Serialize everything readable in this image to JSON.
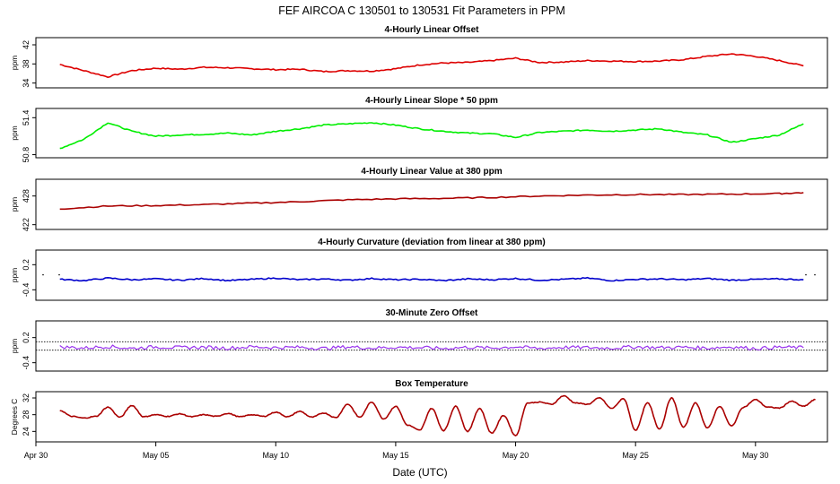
{
  "title": "FEF   AIRCOA C   130501 to 130531   Fit Parameters in PPM",
  "chart_data": {
    "type": "line",
    "xlabel": "Date (UTC)",
    "x_range": [
      "2013-04-30",
      "2013-06-02"
    ],
    "x_ticks": [
      {
        "date": "2013-04-30",
        "label": "Apr 30"
      },
      {
        "date": "2013-05-05",
        "label": "May 05"
      },
      {
        "date": "2013-05-10",
        "label": "May 10"
      },
      {
        "date": "2013-05-15",
        "label": "May 15"
      },
      {
        "date": "2013-05-20",
        "label": "May 20"
      },
      {
        "date": "2013-05-25",
        "label": "May 25"
      },
      {
        "date": "2013-05-30",
        "label": "May 30"
      }
    ],
    "panels": [
      {
        "title": "4-Hourly Linear Offset",
        "ylabel": "ppm",
        "ylim": [
          33,
          43.5
        ],
        "yticks": [
          34,
          38,
          42
        ],
        "color": "#dd0000",
        "hlines": [],
        "points": [
          [
            "2013-05-01",
            37.9
          ],
          [
            "2013-05-02",
            36.6
          ],
          [
            "2013-05-03",
            35.3
          ],
          [
            "2013-05-04",
            36.6
          ],
          [
            "2013-05-05",
            37.1
          ],
          [
            "2013-05-06",
            36.9
          ],
          [
            "2013-05-07",
            37.3
          ],
          [
            "2013-05-08",
            37.2
          ],
          [
            "2013-05-09",
            37.0
          ],
          [
            "2013-05-10",
            36.8
          ],
          [
            "2013-05-11",
            36.9
          ],
          [
            "2013-05-12",
            36.4
          ],
          [
            "2013-05-13",
            36.6
          ],
          [
            "2013-05-14",
            36.5
          ],
          [
            "2013-05-15",
            37.0
          ],
          [
            "2013-05-16",
            37.8
          ],
          [
            "2013-05-17",
            38.2
          ],
          [
            "2013-05-18",
            38.3
          ],
          [
            "2013-05-19",
            38.7
          ],
          [
            "2013-05-20",
            39.2
          ],
          [
            "2013-05-21",
            38.3
          ],
          [
            "2013-05-22",
            38.4
          ],
          [
            "2013-05-23",
            38.7
          ],
          [
            "2013-05-24",
            38.6
          ],
          [
            "2013-05-25",
            38.5
          ],
          [
            "2013-05-26",
            38.6
          ],
          [
            "2013-05-27",
            38.9
          ],
          [
            "2013-05-28",
            39.6
          ],
          [
            "2013-05-29",
            40.1
          ],
          [
            "2013-05-30",
            39.6
          ],
          [
            "2013-05-31",
            38.7
          ],
          [
            "2013-06-01",
            37.6
          ]
        ]
      },
      {
        "title": "4-Hourly Linear Slope * 50 ppm",
        "ylabel": "ppm",
        "ylim": [
          50.75,
          51.55
        ],
        "yticks": [
          50.8,
          51.4
        ],
        "color": "#00ee00",
        "hlines": [],
        "points": [
          [
            "2013-05-01",
            50.9
          ],
          [
            "2013-05-02",
            51.05
          ],
          [
            "2013-05-03",
            51.32
          ],
          [
            "2013-05-04",
            51.18
          ],
          [
            "2013-05-05",
            51.1
          ],
          [
            "2013-05-06",
            51.12
          ],
          [
            "2013-05-07",
            51.13
          ],
          [
            "2013-05-08",
            51.15
          ],
          [
            "2013-05-09",
            51.12
          ],
          [
            "2013-05-10",
            51.18
          ],
          [
            "2013-05-11",
            51.22
          ],
          [
            "2013-05-12",
            51.28
          ],
          [
            "2013-05-13",
            51.3
          ],
          [
            "2013-05-14",
            51.32
          ],
          [
            "2013-05-15",
            51.28
          ],
          [
            "2013-05-16",
            51.22
          ],
          [
            "2013-05-17",
            51.18
          ],
          [
            "2013-05-18",
            51.15
          ],
          [
            "2013-05-19",
            51.14
          ],
          [
            "2013-05-20",
            51.08
          ],
          [
            "2013-05-21",
            51.16
          ],
          [
            "2013-05-22",
            51.18
          ],
          [
            "2013-05-23",
            51.2
          ],
          [
            "2013-05-24",
            51.18
          ],
          [
            "2013-05-25",
            51.2
          ],
          [
            "2013-05-26",
            51.22
          ],
          [
            "2013-05-27",
            51.16
          ],
          [
            "2013-05-28",
            51.12
          ],
          [
            "2013-05-29",
            51.0
          ],
          [
            "2013-05-30",
            51.06
          ],
          [
            "2013-05-31",
            51.12
          ],
          [
            "2013-06-01",
            51.3
          ]
        ]
      },
      {
        "title": "4-Hourly Linear Value at 380 ppm",
        "ylabel": "ppm",
        "ylim": [
          421,
          431.5
        ],
        "yticks": [
          422,
          428
        ],
        "color": "#aa0000",
        "hlines": [],
        "points": [
          [
            "2013-05-01",
            425.3
          ],
          [
            "2013-05-03",
            425.9
          ],
          [
            "2013-05-05",
            426.0
          ],
          [
            "2013-05-07",
            426.2
          ],
          [
            "2013-05-09",
            426.5
          ],
          [
            "2013-05-11",
            426.8
          ],
          [
            "2013-05-13",
            427.2
          ],
          [
            "2013-05-15",
            427.4
          ],
          [
            "2013-05-17",
            427.5
          ],
          [
            "2013-05-19",
            427.7
          ],
          [
            "2013-05-21",
            428.0
          ],
          [
            "2013-05-23",
            428.2
          ],
          [
            "2013-05-25",
            428.3
          ],
          [
            "2013-05-27",
            428.3
          ],
          [
            "2013-05-29",
            428.4
          ],
          [
            "2013-05-31",
            428.5
          ],
          [
            "2013-06-01",
            428.7
          ]
        ]
      },
      {
        "title": "4-Hourly Curvature (deviation from linear at 380 ppm)",
        "ylabel": "ppm",
        "ylim": [
          -0.65,
          0.55
        ],
        "yticks": [
          -0.4,
          0.2
        ],
        "color": "#0000cc",
        "hlines": [],
        "points": [
          [
            "2013-05-01",
            -0.15
          ],
          [
            "2013-05-02",
            -0.18
          ],
          [
            "2013-05-03",
            -0.12
          ],
          [
            "2013-05-04",
            -0.16
          ],
          [
            "2013-05-05",
            -0.14
          ],
          [
            "2013-05-06",
            -0.17
          ],
          [
            "2013-05-07",
            -0.13
          ],
          [
            "2013-05-08",
            -0.18
          ],
          [
            "2013-05-09",
            -0.15
          ],
          [
            "2013-05-10",
            -0.12
          ],
          [
            "2013-05-11",
            -0.16
          ],
          [
            "2013-05-12",
            -0.14
          ],
          [
            "2013-05-13",
            -0.17
          ],
          [
            "2013-05-14",
            -0.13
          ],
          [
            "2013-05-15",
            -0.16
          ],
          [
            "2013-05-16",
            -0.15
          ],
          [
            "2013-05-17",
            -0.18
          ],
          [
            "2013-05-18",
            -0.14
          ],
          [
            "2013-05-19",
            -0.16
          ],
          [
            "2013-05-20",
            -0.13
          ],
          [
            "2013-05-21",
            -0.17
          ],
          [
            "2013-05-22",
            -0.15
          ],
          [
            "2013-05-23",
            -0.12
          ],
          [
            "2013-05-24",
            -0.18
          ],
          [
            "2013-05-25",
            -0.15
          ],
          [
            "2013-05-26",
            -0.14
          ],
          [
            "2013-05-27",
            -0.16
          ],
          [
            "2013-05-28",
            -0.13
          ],
          [
            "2013-05-29",
            -0.17
          ],
          [
            "2013-05-30",
            -0.15
          ],
          [
            "2013-05-31",
            -0.14
          ],
          [
            "2013-06-01",
            -0.16
          ]
        ]
      },
      {
        "title": "30-Minute Zero Offset",
        "ylabel": "ppm",
        "ylim": [
          -0.6,
          0.6
        ],
        "yticks": [
          -0.4,
          0.2
        ],
        "color": "#9933ee",
        "hlines": [
          -0.1,
          0.1
        ],
        "points": [
          [
            "2013-05-01",
            -0.02
          ],
          [
            "2013-05-02",
            -0.05
          ],
          [
            "2013-05-03",
            -0.01
          ],
          [
            "2013-05-04",
            -0.06
          ],
          [
            "2013-05-05",
            -0.02
          ],
          [
            "2013-05-06",
            -0.04
          ],
          [
            "2013-05-07",
            -0.03
          ],
          [
            "2013-05-08",
            -0.05
          ],
          [
            "2013-05-09",
            -0.02
          ],
          [
            "2013-05-10",
            -0.04
          ],
          [
            "2013-05-11",
            -0.03
          ],
          [
            "2013-05-12",
            -0.06
          ],
          [
            "2013-05-13",
            -0.02
          ],
          [
            "2013-05-14",
            -0.05
          ],
          [
            "2013-05-15",
            -0.03
          ],
          [
            "2013-05-16",
            -0.04
          ],
          [
            "2013-05-17",
            -0.06
          ],
          [
            "2013-05-18",
            -0.03
          ],
          [
            "2013-05-19",
            -0.05
          ],
          [
            "2013-05-20",
            -0.02
          ],
          [
            "2013-05-21",
            -0.06
          ],
          [
            "2013-05-22",
            -0.03
          ],
          [
            "2013-05-23",
            -0.04
          ],
          [
            "2013-05-24",
            -0.05
          ],
          [
            "2013-05-25",
            -0.02
          ],
          [
            "2013-05-26",
            -0.04
          ],
          [
            "2013-05-27",
            -0.03
          ],
          [
            "2013-05-28",
            -0.05
          ],
          [
            "2013-05-29",
            -0.02
          ],
          [
            "2013-05-30",
            -0.06
          ],
          [
            "2013-05-31",
            -0.03
          ],
          [
            "2013-06-01",
            -0.04
          ]
        ]
      },
      {
        "title": "Box Temperature",
        "ylabel": "Degrees C",
        "ylim": [
          21.5,
          33.5
        ],
        "yticks": [
          24,
          28,
          32
        ],
        "color": "#aa0000",
        "hlines": [],
        "points": [
          [
            "2013-05-01",
            29.0
          ],
          [
            "2013-05-01.5",
            27.6
          ],
          [
            "2013-05-02",
            27.2
          ],
          [
            "2013-05-02.5",
            27.6
          ],
          [
            "2013-05-03",
            29.8
          ],
          [
            "2013-05-03.5",
            27.4
          ],
          [
            "2013-05-04",
            30.2
          ],
          [
            "2013-05-04.5",
            27.5
          ],
          [
            "2013-05-05",
            28.0
          ],
          [
            "2013-05-05.5",
            27.6
          ],
          [
            "2013-05-06",
            28.2
          ],
          [
            "2013-05-06.5",
            27.5
          ],
          [
            "2013-05-07",
            28.0
          ],
          [
            "2013-05-07.5",
            27.6
          ],
          [
            "2013-05-08",
            28.3
          ],
          [
            "2013-05-08.5",
            27.5
          ],
          [
            "2013-05-09",
            28.0
          ],
          [
            "2013-05-09.5",
            27.6
          ],
          [
            "2013-05-10",
            28.6
          ],
          [
            "2013-05-10.5",
            27.5
          ],
          [
            "2013-05-11",
            28.8
          ],
          [
            "2013-05-11.5",
            27.4
          ],
          [
            "2013-05-12",
            28.4
          ],
          [
            "2013-05-12.5",
            27.3
          ],
          [
            "2013-05-13",
            30.5
          ],
          [
            "2013-05-13.5",
            27.4
          ],
          [
            "2013-05-14",
            31.0
          ],
          [
            "2013-05-14.5",
            27.0
          ],
          [
            "2013-05-15",
            30.0
          ],
          [
            "2013-05-15.5",
            25.5
          ],
          [
            "2013-05-16",
            24.3
          ],
          [
            "2013-05-16.5",
            29.5
          ],
          [
            "2013-05-17",
            24.2
          ],
          [
            "2013-05-17.5",
            30.0
          ],
          [
            "2013-05-18",
            24.0
          ],
          [
            "2013-05-18.5",
            29.5
          ],
          [
            "2013-05-19",
            23.6
          ],
          [
            "2013-05-19.5",
            27.8
          ],
          [
            "2013-05-20",
            23.0
          ],
          [
            "2013-05-20.5",
            30.8
          ],
          [
            "2013-05-21",
            31.0
          ],
          [
            "2013-05-21.5",
            30.5
          ],
          [
            "2013-05-22",
            32.5
          ],
          [
            "2013-05-22.5",
            30.8
          ],
          [
            "2013-05-23",
            30.5
          ],
          [
            "2013-05-23.5",
            32.0
          ],
          [
            "2013-05-24",
            29.5
          ],
          [
            "2013-05-24.5",
            31.8
          ],
          [
            "2013-05-25",
            24.3
          ],
          [
            "2013-05-25.5",
            30.8
          ],
          [
            "2013-05-26",
            24.6
          ],
          [
            "2013-05-26.5",
            32.0
          ],
          [
            "2013-05-27",
            25.0
          ],
          [
            "2013-05-27.5",
            30.8
          ],
          [
            "2013-05-28",
            24.8
          ],
          [
            "2013-05-28.5",
            30.0
          ],
          [
            "2013-05-29",
            25.3
          ],
          [
            "2013-05-29.5",
            29.8
          ],
          [
            "2013-05-30",
            31.6
          ],
          [
            "2013-05-30.5",
            29.8
          ],
          [
            "2013-05-31",
            29.6
          ],
          [
            "2013-05-31.5",
            31.2
          ],
          [
            "2013-06-01",
            30.0
          ],
          [
            "2013-06-01.5",
            31.6
          ]
        ]
      }
    ]
  }
}
